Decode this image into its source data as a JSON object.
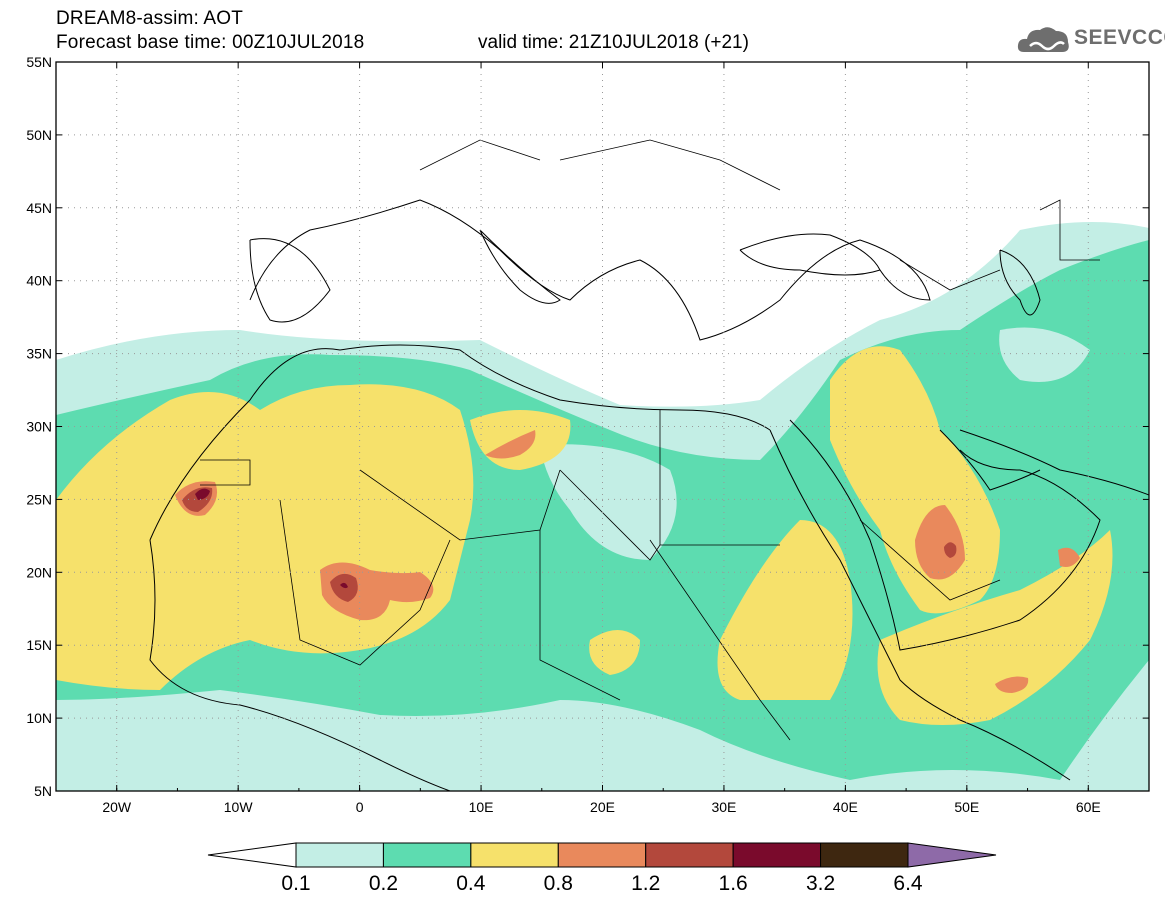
{
  "header": {
    "line1": "DREAM8-assim: AOT",
    "line2": "Forecast base time: 00Z10JUL2018",
    "valid": "valid time: 21Z10JUL2018 (+21)"
  },
  "logo": {
    "text": "SEEVCCC",
    "icon": "cloud-icon",
    "color": "#6e6e6e"
  },
  "map": {
    "lon_range": [
      -25,
      65
    ],
    "lat_range": [
      5,
      55
    ],
    "lat_labels": [
      "5N",
      "10N",
      "15N",
      "20N",
      "25N",
      "30N",
      "35N",
      "40N",
      "45N",
      "50N",
      "55N"
    ],
    "lon_labels": [
      "20W",
      "10W",
      "0",
      "10E",
      "20E",
      "30E",
      "40E",
      "50E",
      "60E"
    ]
  },
  "colorbar": {
    "labels": [
      "0.1",
      "0.2",
      "0.4",
      "0.8",
      "1.2",
      "1.6",
      "3.2",
      "6.4"
    ],
    "colors": [
      "#ffffff",
      "#c3eee5",
      "#5ddcb0",
      "#f6e16b",
      "#e9895c",
      "#b3483c",
      "#7a0a2c",
      "#3e2710",
      "#8e6aa8"
    ]
  }
}
